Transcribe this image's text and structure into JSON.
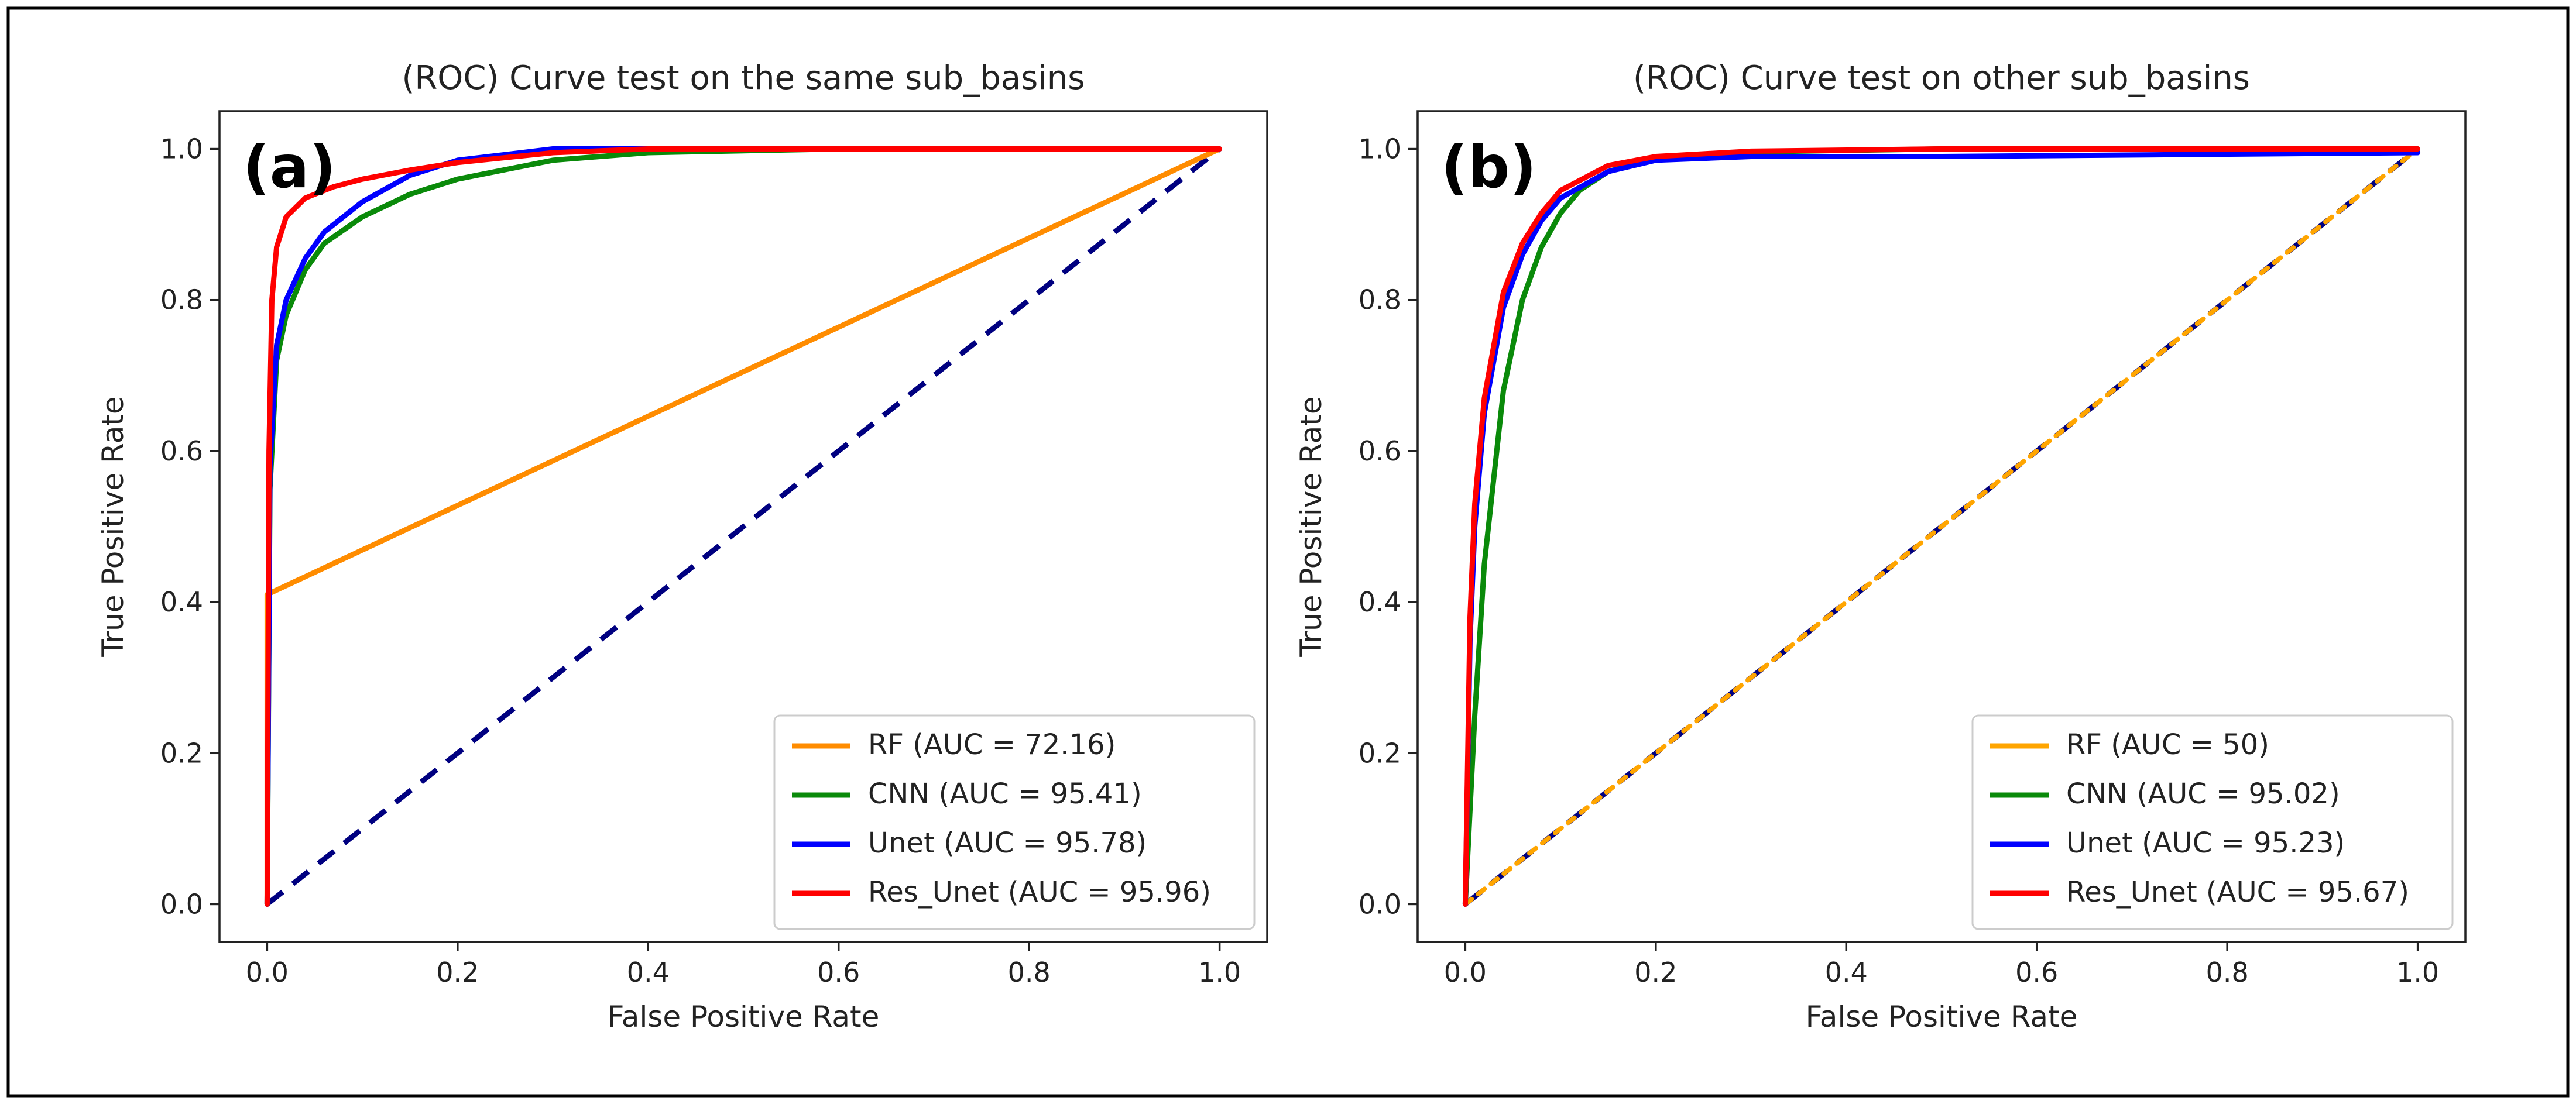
{
  "chart_data": [
    {
      "type": "line",
      "panel_label": "(a)",
      "title": "(ROC) Curve test on the same sub_basins",
      "xlabel": "False Positive Rate",
      "ylabel": "True Positive Rate",
      "xlim": [
        -0.05,
        1.05
      ],
      "ylim": [
        -0.05,
        1.05
      ],
      "xticks": [
        "0.0",
        "0.2",
        "0.4",
        "0.6",
        "0.8",
        "1.0"
      ],
      "yticks": [
        "0.0",
        "0.2",
        "0.4",
        "0.6",
        "0.8",
        "1.0"
      ],
      "xtick_values": [
        0,
        0.2,
        0.4,
        0.6,
        0.8,
        1.0
      ],
      "ytick_values": [
        0,
        0.2,
        0.4,
        0.6,
        0.8,
        1.0
      ],
      "legend_position": "lower-right",
      "series": [
        {
          "name": "RF (AUC = 72.16)",
          "color": "#ff8c00",
          "dashed": false,
          "x": [
            0,
            0,
            1.0
          ],
          "y": [
            0,
            0.41,
            1.0
          ]
        },
        {
          "name": "CNN (AUC = 95.41)",
          "color": "#0a8a0a",
          "dashed": false,
          "x": [
            0,
            0.003,
            0.01,
            0.02,
            0.04,
            0.06,
            0.1,
            0.15,
            0.2,
            0.3,
            0.4,
            0.6,
            1.0
          ],
          "y": [
            0,
            0.55,
            0.72,
            0.78,
            0.84,
            0.875,
            0.91,
            0.94,
            0.96,
            0.985,
            0.995,
            1.0,
            1.0
          ]
        },
        {
          "name": "Unet (AUC = 95.78)",
          "color": "#0000ff",
          "dashed": false,
          "x": [
            0,
            0.003,
            0.01,
            0.02,
            0.04,
            0.06,
            0.1,
            0.15,
            0.2,
            0.3,
            0.4,
            0.6,
            1.0
          ],
          "y": [
            0,
            0.58,
            0.74,
            0.8,
            0.855,
            0.89,
            0.93,
            0.965,
            0.985,
            1.0,
            1.0,
            1.0,
            1.0
          ]
        },
        {
          "name": "Res_Unet (AUC = 95.96)",
          "color": "#ff0000",
          "dashed": false,
          "x": [
            0,
            0.002,
            0.005,
            0.01,
            0.02,
            0.04,
            0.07,
            0.1,
            0.15,
            0.2,
            0.3,
            0.4,
            1.0
          ],
          "y": [
            0,
            0.6,
            0.8,
            0.87,
            0.91,
            0.935,
            0.95,
            0.96,
            0.972,
            0.982,
            0.995,
            1.0,
            1.0
          ]
        },
        {
          "name": "",
          "color": "#000080",
          "dashed": true,
          "x": [
            0,
            1.0
          ],
          "y": [
            0,
            1.0
          ]
        }
      ]
    },
    {
      "type": "line",
      "panel_label": "(b)",
      "title": "(ROC) Curve test on other sub_basins",
      "xlabel": "False Positive Rate",
      "ylabel": "True Positive Rate",
      "xlim": [
        -0.05,
        1.05
      ],
      "ylim": [
        -0.05,
        1.05
      ],
      "xticks": [
        "0.0",
        "0.2",
        "0.4",
        "0.6",
        "0.8",
        "1.0"
      ],
      "yticks": [
        "0.0",
        "0.2",
        "0.4",
        "0.6",
        "0.8",
        "1.0"
      ],
      "xtick_values": [
        0,
        0.2,
        0.4,
        0.6,
        0.8,
        1.0
      ],
      "ytick_values": [
        0,
        0.2,
        0.4,
        0.6,
        0.8,
        1.0
      ],
      "legend_position": "lower-right",
      "series": [
        {
          "name": "RF (AUC = 50)",
          "color": "#ffa500",
          "dashed": false,
          "x": [
            0,
            1.0
          ],
          "y": [
            0,
            1.0
          ]
        },
        {
          "name": "CNN (AUC = 95.02)",
          "color": "#0a8a0a",
          "dashed": false,
          "x": [
            0,
            0.01,
            0.02,
            0.04,
            0.06,
            0.08,
            0.1,
            0.12,
            0.15,
            0.2,
            0.3,
            0.5,
            1.0
          ],
          "y": [
            0,
            0.25,
            0.45,
            0.68,
            0.8,
            0.87,
            0.915,
            0.945,
            0.97,
            0.988,
            0.996,
            1.0,
            1.0
          ]
        },
        {
          "name": "Unet (AUC = 95.23)",
          "color": "#0000ff",
          "dashed": false,
          "x": [
            0,
            0.005,
            0.01,
            0.02,
            0.04,
            0.06,
            0.08,
            0.1,
            0.15,
            0.2,
            0.3,
            0.5,
            1.0
          ],
          "y": [
            0,
            0.35,
            0.5,
            0.65,
            0.79,
            0.86,
            0.905,
            0.935,
            0.97,
            0.985,
            0.99,
            0.99,
            0.995
          ]
        },
        {
          "name": "Res_Unet (AUC = 95.67)",
          "color": "#ff0000",
          "dashed": false,
          "x": [
            0,
            0.005,
            0.01,
            0.02,
            0.04,
            0.06,
            0.08,
            0.1,
            0.15,
            0.2,
            0.3,
            0.5,
            1.0
          ],
          "y": [
            0,
            0.38,
            0.53,
            0.67,
            0.81,
            0.875,
            0.915,
            0.945,
            0.978,
            0.99,
            0.997,
            1.0,
            1.0
          ]
        },
        {
          "name": "",
          "color": "#000080",
          "dashed": true,
          "x": [
            0,
            1.0
          ],
          "y": [
            0,
            1.0
          ]
        }
      ]
    }
  ]
}
